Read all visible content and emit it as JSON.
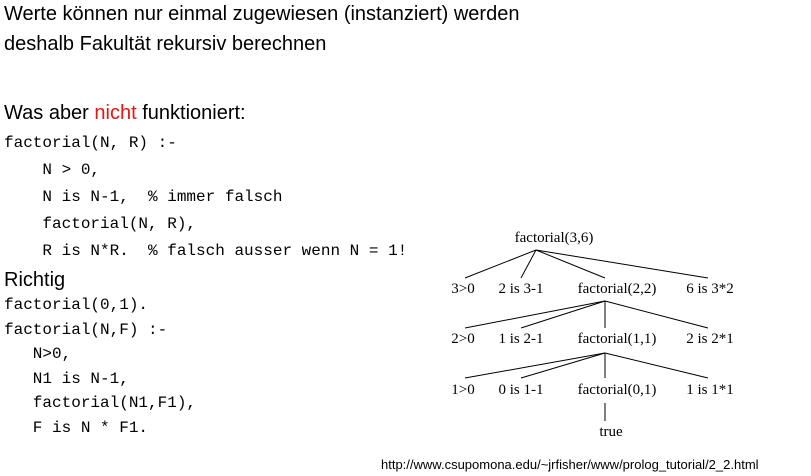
{
  "intro": {
    "line1": "Werte können nur einmal zugewiesen (instanziert) werden",
    "line2": "deshalb Fakultät rekursiv berechnen"
  },
  "wrong": {
    "heading_pre": "Was aber ",
    "heading_highlight": "nicht",
    "heading_post": " funktioniert:",
    "highlight_color": "#e8140e",
    "code": [
      "factorial(N, R) :-",
      "    N > 0,",
      "    N is N-1,  % immer falsch",
      "    factorial(N, R),",
      "    R is N*R.  % falsch ausser wenn N = 1!"
    ]
  },
  "right": {
    "heading": "Richtig",
    "code": [
      "factorial(0,1).",
      "factorial(N,F) :-",
      "   N>0,",
      "   N1 is N-1,",
      "   factorial(N1,F1),",
      "   F is N * F1."
    ]
  },
  "tree": {
    "root": "factorial(3,6)",
    "level1": [
      "3>0",
      "2 is 3-1",
      "factorial(2,2)",
      "6 is 3*2"
    ],
    "level2": [
      "2>0",
      "1 is 2-1",
      "factorial(1,1)",
      "2 is 2*1"
    ],
    "level3": [
      "1>0",
      "0 is 1-1",
      "factorial(0,1)",
      "1 is 1*1"
    ],
    "leaf": "true"
  },
  "source_url": "http://www.csupomona.edu/~jrfisher/www/prolog_tutorial/2_2.html"
}
